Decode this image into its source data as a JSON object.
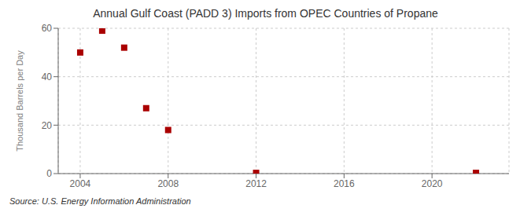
{
  "chart_data": {
    "type": "scatter",
    "title": "Annual Gulf Coast (PADD 3) Imports from OPEC Countries of Propane",
    "ylabel": "Thousand Barrels per Day",
    "annotation": "Source: U.S. Energy Information Administration",
    "x": [
      2004,
      2005,
      2006,
      2007,
      2008,
      2012,
      2022
    ],
    "values": [
      50,
      59,
      52,
      27,
      18,
      0.3,
      0.3
    ],
    "color": "#aa0000",
    "marker": "square",
    "xlim": [
      2003.0,
      2023.5
    ],
    "ylim": [
      0,
      60
    ],
    "xticks": [
      2004,
      2008,
      2012,
      2016,
      2020
    ],
    "yticks": [
      0,
      20,
      40,
      60
    ],
    "grid": true
  }
}
